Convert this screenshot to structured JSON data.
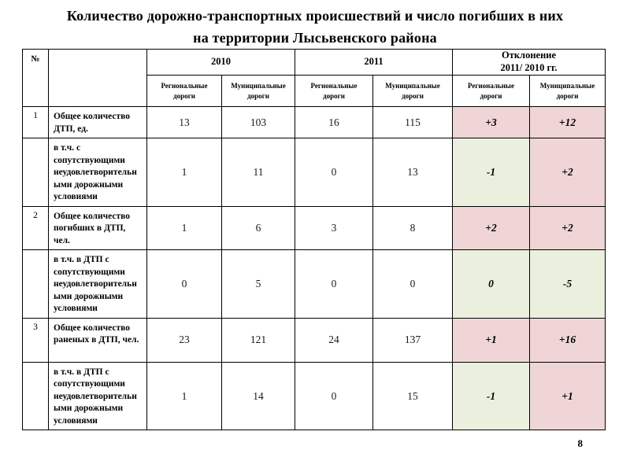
{
  "title": {
    "line1": "Количество дорожно-транспортных происшествий и число погибших в них",
    "line2": "на территории Лысьвенского района"
  },
  "colors": {
    "deviation_pink": "#efd5d6",
    "deviation_green": "#ebf0de",
    "border": "#000000"
  },
  "table": {
    "number_header": "№",
    "indicator_header": "",
    "groups": [
      {
        "label": "2010"
      },
      {
        "label": "2011"
      },
      {
        "label_line1": "Отклонение",
        "label_line2": "2011/ 2010 гг."
      }
    ],
    "sub_regional": "Региональные дороги",
    "sub_municipal": "Муниципальные дороги",
    "rows": [
      {
        "num": "1",
        "label": "Общее количество ДТП, ед.",
        "values": [
          "13",
          "103",
          "16",
          "115"
        ],
        "dev": [
          {
            "text": "+3",
            "tone": "pink"
          },
          {
            "text": "+12",
            "tone": "pink"
          }
        ]
      },
      {
        "num": "",
        "label": "в т.ч. с сопутствующими неудовлетворительными дорожными условиями",
        "values": [
          "1",
          "11",
          "0",
          "13"
        ],
        "dev": [
          {
            "text": "-1",
            "tone": "green"
          },
          {
            "text": "+2",
            "tone": "pink"
          }
        ]
      },
      {
        "num": "2",
        "label": "Общее количество погибших в ДТП, чел.",
        "values": [
          "1",
          "6",
          "3",
          "8"
        ],
        "dev": [
          {
            "text": "+2",
            "tone": "pink"
          },
          {
            "text": "+2",
            "tone": "pink"
          }
        ]
      },
      {
        "num": "",
        "label": "в т.ч. в ДТП с сопутствующими неудовлетворительными дорожными условиями",
        "values": [
          "0",
          "5",
          "0",
          "0"
        ],
        "dev": [
          {
            "text": "0",
            "tone": "green"
          },
          {
            "text": "-5",
            "tone": "green"
          }
        ]
      },
      {
        "num": "3",
        "label": "Общее количество раненых в ДТП, чел.",
        "values": [
          "23",
          "121",
          "24",
          "137"
        ],
        "dev": [
          {
            "text": "+1",
            "tone": "pink"
          },
          {
            "text": "+16",
            "tone": "pink"
          }
        ]
      },
      {
        "num": "",
        "label": "в т.ч. в ДТП с сопутствующими неудовлетворительными дорожными условиями",
        "values": [
          "1",
          "14",
          "0",
          "15"
        ],
        "dev": [
          {
            "text": "-1",
            "tone": "green"
          },
          {
            "text": "+1",
            "tone": "pink"
          }
        ]
      }
    ]
  },
  "page_number": "8"
}
